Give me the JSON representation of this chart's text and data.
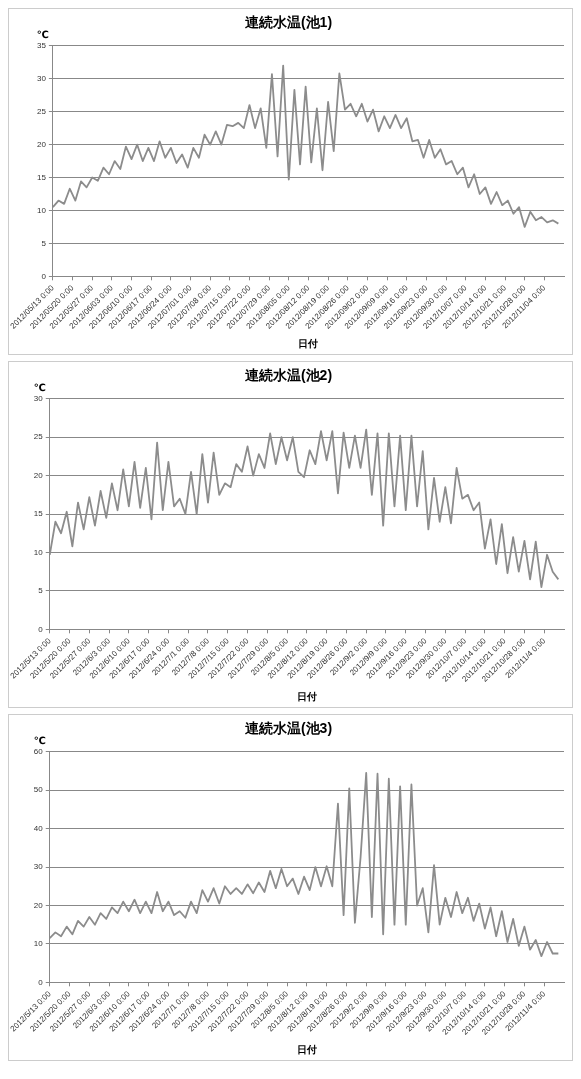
{
  "chart_data": [
    {
      "type": "line",
      "title": "連続水温(池1)",
      "ylabel": "℃",
      "xlabel": "日付",
      "color": "#8c8c8c",
      "grid": "y",
      "legend": false,
      "xlim": [
        "2012-05-13",
        "2012-11-11"
      ],
      "ylim": [
        0,
        35
      ],
      "yticks": [
        0,
        5,
        10,
        15,
        20,
        25,
        30,
        35
      ],
      "xticks": [
        {
          "value": "2012-05-13",
          "label": "2012/05/13 0:00"
        },
        {
          "value": "2012-05-20",
          "label": "2012/05/20 0:00"
        },
        {
          "value": "2012-05-27",
          "label": "2012/05/27 0:00"
        },
        {
          "value": "2012-06-03",
          "label": "2012/06/03 0:00"
        },
        {
          "value": "2012-06-10",
          "label": "2012/06/10 0:00"
        },
        {
          "value": "2012-06-17",
          "label": "2012/06/17 0:00"
        },
        {
          "value": "2012-06-24",
          "label": "2012/06/24 0:00"
        },
        {
          "value": "2012-07-01",
          "label": "2012/07/01 0:00"
        },
        {
          "value": "2012-07-08",
          "label": "2012/07/08 0:00"
        },
        {
          "value": "2012-07-15",
          "label": "2012/07/15 0:00"
        },
        {
          "value": "2012-07-22",
          "label": "2012/07/22 0:00"
        },
        {
          "value": "2012-07-29",
          "label": "2012/07/29 0:00"
        },
        {
          "value": "2012-08-05",
          "label": "2012/08/05 0:00"
        },
        {
          "value": "2012-08-12",
          "label": "2012/08/12 0:00"
        },
        {
          "value": "2012-08-19",
          "label": "2012/08/19 0:00"
        },
        {
          "value": "2012-08-26",
          "label": "2012/08/26 0:00"
        },
        {
          "value": "2012-09-02",
          "label": "2012/09/02 0:00"
        },
        {
          "value": "2012-09-09",
          "label": "2012/09/09 0:00"
        },
        {
          "value": "2012-09-16",
          "label": "2012/09/16 0:00"
        },
        {
          "value": "2012-09-23",
          "label": "2012/09/23 0:00"
        },
        {
          "value": "2012-09-30",
          "label": "2012/09/30 0:00"
        },
        {
          "value": "2012-10-07",
          "label": "2012/10/07 0:00"
        },
        {
          "value": "2012-10-14",
          "label": "2012/10/14 0:00"
        },
        {
          "value": "2012-10-21",
          "label": "2012/10/21 0:00"
        },
        {
          "value": "2012-10-28",
          "label": "2012/10/28 0:00"
        },
        {
          "value": "2012-11-04",
          "label": "2012/11/04 0:00"
        }
      ],
      "x": [
        "2012-05-13",
        "2012-05-15",
        "2012-05-17",
        "2012-05-19",
        "2012-05-21",
        "2012-05-23",
        "2012-05-25",
        "2012-05-27",
        "2012-05-29",
        "2012-05-31",
        "2012-06-02",
        "2012-06-04",
        "2012-06-06",
        "2012-06-08",
        "2012-06-10",
        "2012-06-12",
        "2012-06-14",
        "2012-06-16",
        "2012-06-18",
        "2012-06-20",
        "2012-06-22",
        "2012-06-24",
        "2012-06-26",
        "2012-06-28",
        "2012-06-30",
        "2012-07-02",
        "2012-07-04",
        "2012-07-06",
        "2012-07-08",
        "2012-07-10",
        "2012-07-12",
        "2012-07-14",
        "2012-07-16",
        "2012-07-18",
        "2012-07-20",
        "2012-07-22",
        "2012-07-24",
        "2012-07-26",
        "2012-07-28",
        "2012-07-30",
        "2012-08-01",
        "2012-08-03",
        "2012-08-05",
        "2012-08-07",
        "2012-08-09",
        "2012-08-11",
        "2012-08-13",
        "2012-08-15",
        "2012-08-17",
        "2012-08-19",
        "2012-08-21",
        "2012-08-23",
        "2012-08-25",
        "2012-08-27",
        "2012-08-29",
        "2012-08-31",
        "2012-09-02",
        "2012-09-04",
        "2012-09-06",
        "2012-09-08",
        "2012-09-10",
        "2012-09-12",
        "2012-09-14",
        "2012-09-16",
        "2012-09-18",
        "2012-09-20",
        "2012-09-22",
        "2012-09-24",
        "2012-09-26",
        "2012-09-28",
        "2012-09-30",
        "2012-10-02",
        "2012-10-04",
        "2012-10-06",
        "2012-10-08",
        "2012-10-10",
        "2012-10-12",
        "2012-10-14",
        "2012-10-16",
        "2012-10-18",
        "2012-10-20",
        "2012-10-22",
        "2012-10-24",
        "2012-10-26",
        "2012-10-28",
        "2012-10-30",
        "2012-11-01",
        "2012-11-03",
        "2012-11-05",
        "2012-11-07",
        "2012-11-09"
      ],
      "values": [
        10.5,
        11.5,
        11,
        13.3,
        11.5,
        14.4,
        13.5,
        15,
        14.5,
        16.5,
        15.5,
        17.5,
        16.3,
        19.7,
        17.8,
        20,
        17.5,
        19.5,
        17.5,
        20.5,
        18,
        19.5,
        17.2,
        18.5,
        16.5,
        19.5,
        18,
        21.5,
        20,
        22,
        20,
        23,
        22.8,
        23.3,
        22.5,
        26,
        22.5,
        25.5,
        19.5,
        30.7,
        18.2,
        32,
        14.7,
        28.3,
        17,
        28.8,
        17.3,
        25.5,
        16.1,
        26.5,
        19,
        30.8,
        25.3,
        26.2,
        24.3,
        26.2,
        23.5,
        25.3,
        22,
        24.3,
        22.5,
        24.5,
        22.5,
        24,
        20.5,
        20.7,
        18,
        20.7,
        18,
        19.3,
        17,
        17.5,
        15.5,
        16.5,
        13.5,
        15.5,
        12.5,
        13.5,
        11,
        12.8,
        10.8,
        11.5,
        9.5,
        10.5,
        7.5,
        9.8,
        8.5,
        9,
        8.2,
        8.5,
        8
      ]
    },
    {
      "type": "line",
      "title": "連続水温(池2)",
      "ylabel": "℃",
      "xlabel": "日付",
      "color": "#8c8c8c",
      "grid": "y",
      "legend": false,
      "xlim": [
        "2012-05-13",
        "2012-11-11"
      ],
      "ylim": [
        0,
        30
      ],
      "yticks": [
        0,
        5,
        10,
        15,
        20,
        25,
        30
      ],
      "xticks": [
        {
          "value": "2012-05-13",
          "label": "2012/5/13 0:00"
        },
        {
          "value": "2012-05-20",
          "label": "2012/5/20 0:00"
        },
        {
          "value": "2012-05-27",
          "label": "2012/5/27 0:00"
        },
        {
          "value": "2012-06-03",
          "label": "2012/6/3 0:00"
        },
        {
          "value": "2012-06-10",
          "label": "2012/6/10 0:00"
        },
        {
          "value": "2012-06-17",
          "label": "2012/6/17 0:00"
        },
        {
          "value": "2012-06-24",
          "label": "2012/6/24 0:00"
        },
        {
          "value": "2012-07-01",
          "label": "2012/7/1 0:00"
        },
        {
          "value": "2012-07-08",
          "label": "2012/7/8 0:00"
        },
        {
          "value": "2012-07-15",
          "label": "2012/7/15 0:00"
        },
        {
          "value": "2012-07-22",
          "label": "2012/7/22 0:00"
        },
        {
          "value": "2012-07-29",
          "label": "2012/7/29 0:00"
        },
        {
          "value": "2012-08-05",
          "label": "2012/8/5 0:00"
        },
        {
          "value": "2012-08-12",
          "label": "2012/8/12 0:00"
        },
        {
          "value": "2012-08-19",
          "label": "2012/8/19 0:00"
        },
        {
          "value": "2012-08-26",
          "label": "2012/8/26 0:00"
        },
        {
          "value": "2012-09-02",
          "label": "2012/9/2 0:00"
        },
        {
          "value": "2012-09-09",
          "label": "2012/9/9 0:00"
        },
        {
          "value": "2012-09-16",
          "label": "2012/9/16 0:00"
        },
        {
          "value": "2012-09-23",
          "label": "2012/9/23 0:00"
        },
        {
          "value": "2012-09-30",
          "label": "2012/9/30 0:00"
        },
        {
          "value": "2012-10-07",
          "label": "2012/10/7 0:00"
        },
        {
          "value": "2012-10-14",
          "label": "2012/10/14 0:00"
        },
        {
          "value": "2012-10-21",
          "label": "2012/10/21 0:00"
        },
        {
          "value": "2012-10-28",
          "label": "2012/10/28 0:00"
        },
        {
          "value": "2012-11-04",
          "label": "2012/11/4 0:00"
        }
      ],
      "x": [
        "2012-05-13",
        "2012-05-15",
        "2012-05-17",
        "2012-05-19",
        "2012-05-21",
        "2012-05-23",
        "2012-05-25",
        "2012-05-27",
        "2012-05-29",
        "2012-05-31",
        "2012-06-02",
        "2012-06-04",
        "2012-06-06",
        "2012-06-08",
        "2012-06-10",
        "2012-06-12",
        "2012-06-14",
        "2012-06-16",
        "2012-06-18",
        "2012-06-20",
        "2012-06-22",
        "2012-06-24",
        "2012-06-26",
        "2012-06-28",
        "2012-06-30",
        "2012-07-02",
        "2012-07-04",
        "2012-07-06",
        "2012-07-08",
        "2012-07-10",
        "2012-07-12",
        "2012-07-14",
        "2012-07-16",
        "2012-07-18",
        "2012-07-20",
        "2012-07-22",
        "2012-07-24",
        "2012-07-26",
        "2012-07-28",
        "2012-07-30",
        "2012-08-01",
        "2012-08-03",
        "2012-08-05",
        "2012-08-07",
        "2012-08-09",
        "2012-08-11",
        "2012-08-13",
        "2012-08-15",
        "2012-08-17",
        "2012-08-19",
        "2012-08-21",
        "2012-08-23",
        "2012-08-25",
        "2012-08-27",
        "2012-08-29",
        "2012-08-31",
        "2012-09-02",
        "2012-09-04",
        "2012-09-06",
        "2012-09-08",
        "2012-09-10",
        "2012-09-12",
        "2012-09-14",
        "2012-09-16",
        "2012-09-18",
        "2012-09-20",
        "2012-09-22",
        "2012-09-24",
        "2012-09-26",
        "2012-09-28",
        "2012-09-30",
        "2012-10-02",
        "2012-10-04",
        "2012-10-06",
        "2012-10-08",
        "2012-10-10",
        "2012-10-12",
        "2012-10-14",
        "2012-10-16",
        "2012-10-18",
        "2012-10-20",
        "2012-10-22",
        "2012-10-24",
        "2012-10-26",
        "2012-10-28",
        "2012-10-30",
        "2012-11-01",
        "2012-11-03",
        "2012-11-05",
        "2012-11-07",
        "2012-11-09"
      ],
      "values": [
        9.7,
        14,
        12.5,
        15.3,
        10.8,
        16.5,
        13,
        17.2,
        13.5,
        18,
        14.5,
        19,
        15.5,
        20.8,
        16,
        21.8,
        15.8,
        21,
        14.3,
        24.3,
        15.5,
        21.8,
        16,
        17,
        15,
        20.5,
        15,
        22.8,
        16.5,
        23,
        17.5,
        19,
        18.5,
        21.5,
        20.5,
        23.8,
        20,
        22.8,
        21,
        25.5,
        21.5,
        25,
        22,
        25,
        20.5,
        19.8,
        23.3,
        21.5,
        25.8,
        22,
        25.8,
        17.7,
        25.6,
        21,
        25.2,
        21,
        26,
        17.5,
        25.5,
        13.5,
        25.5,
        16,
        25.2,
        15.5,
        25.2,
        16,
        23.2,
        13,
        19.7,
        14,
        18.5,
        13.8,
        21,
        17,
        17.5,
        15.5,
        16.5,
        10.5,
        14.3,
        8.5,
        13.7,
        7.3,
        12,
        7.5,
        11.5,
        6.5,
        11.4,
        5.5,
        9.7,
        7.5,
        6.5
      ]
    },
    {
      "type": "line",
      "title": "連続水温(池3)",
      "ylabel": "℃",
      "xlabel": "日付",
      "color": "#8c8c8c",
      "grid": "y",
      "legend": false,
      "xlim": [
        "2012-05-13",
        "2012-11-11"
      ],
      "ylim": [
        0,
        60
      ],
      "yticks": [
        0,
        10,
        20,
        30,
        40,
        50,
        60
      ],
      "xticks": [
        {
          "value": "2012-05-13",
          "label": "2012/5/13 0:00"
        },
        {
          "value": "2012-05-20",
          "label": "2012/5/20 0:00"
        },
        {
          "value": "2012-05-27",
          "label": "2012/5/27 0:00"
        },
        {
          "value": "2012-06-03",
          "label": "2012/6/3 0:00"
        },
        {
          "value": "2012-06-10",
          "label": "2012/6/10 0:00"
        },
        {
          "value": "2012-06-17",
          "label": "2012/6/17 0:00"
        },
        {
          "value": "2012-06-24",
          "label": "2012/6/24 0:00"
        },
        {
          "value": "2012-07-01",
          "label": "2012/7/1 0:00"
        },
        {
          "value": "2012-07-08",
          "label": "2012/7/8 0:00"
        },
        {
          "value": "2012-07-15",
          "label": "2012/7/15 0:00"
        },
        {
          "value": "2012-07-22",
          "label": "2012/7/22 0:00"
        },
        {
          "value": "2012-07-29",
          "label": "2012/7/29 0:00"
        },
        {
          "value": "2012-08-05",
          "label": "2012/8/5 0:00"
        },
        {
          "value": "2012-08-12",
          "label": "2012/8/12 0:00"
        },
        {
          "value": "2012-08-19",
          "label": "2012/8/19 0:00"
        },
        {
          "value": "2012-08-26",
          "label": "2012/8/26 0:00"
        },
        {
          "value": "2012-09-02",
          "label": "2012/9/2 0:00"
        },
        {
          "value": "2012-09-09",
          "label": "2012/9/9 0:00"
        },
        {
          "value": "2012-09-16",
          "label": "2012/9/16 0:00"
        },
        {
          "value": "2012-09-23",
          "label": "2012/9/23 0:00"
        },
        {
          "value": "2012-09-30",
          "label": "2012/9/30 0:00"
        },
        {
          "value": "2012-10-07",
          "label": "2012/10/7 0:00"
        },
        {
          "value": "2012-10-14",
          "label": "2012/10/14 0:00"
        },
        {
          "value": "2012-10-21",
          "label": "2012/10/21 0:00"
        },
        {
          "value": "2012-10-28",
          "label": "2012/10/28 0:00"
        },
        {
          "value": "2012-11-04",
          "label": "2012/11/4 0:00"
        }
      ],
      "x": [
        "2012-05-13",
        "2012-05-15",
        "2012-05-17",
        "2012-05-19",
        "2012-05-21",
        "2012-05-23",
        "2012-05-25",
        "2012-05-27",
        "2012-05-29",
        "2012-05-31",
        "2012-06-02",
        "2012-06-04",
        "2012-06-06",
        "2012-06-08",
        "2012-06-10",
        "2012-06-12",
        "2012-06-14",
        "2012-06-16",
        "2012-06-18",
        "2012-06-20",
        "2012-06-22",
        "2012-06-24",
        "2012-06-26",
        "2012-06-28",
        "2012-06-30",
        "2012-07-02",
        "2012-07-04",
        "2012-07-06",
        "2012-07-08",
        "2012-07-10",
        "2012-07-12",
        "2012-07-14",
        "2012-07-16",
        "2012-07-18",
        "2012-07-20",
        "2012-07-22",
        "2012-07-24",
        "2012-07-26",
        "2012-07-28",
        "2012-07-30",
        "2012-08-01",
        "2012-08-03",
        "2012-08-05",
        "2012-08-07",
        "2012-08-09",
        "2012-08-11",
        "2012-08-13",
        "2012-08-15",
        "2012-08-17",
        "2012-08-19",
        "2012-08-21",
        "2012-08-23",
        "2012-08-25",
        "2012-08-27",
        "2012-08-29",
        "2012-08-31",
        "2012-09-02",
        "2012-09-04",
        "2012-09-06",
        "2012-09-08",
        "2012-09-10",
        "2012-09-12",
        "2012-09-14",
        "2012-09-16",
        "2012-09-18",
        "2012-09-20",
        "2012-09-22",
        "2012-09-24",
        "2012-09-26",
        "2012-09-28",
        "2012-09-30",
        "2012-10-02",
        "2012-10-04",
        "2012-10-06",
        "2012-10-08",
        "2012-10-10",
        "2012-10-12",
        "2012-10-14",
        "2012-10-16",
        "2012-10-18",
        "2012-10-20",
        "2012-10-22",
        "2012-10-24",
        "2012-10-26",
        "2012-10-28",
        "2012-10-30",
        "2012-11-01",
        "2012-11-03",
        "2012-11-05",
        "2012-11-07",
        "2012-11-09"
      ],
      "values": [
        11.5,
        13,
        12,
        14.5,
        12.5,
        16,
        14.5,
        17,
        15,
        18,
        16.5,
        19.5,
        18,
        21,
        18.5,
        21.5,
        18,
        21,
        18,
        23.5,
        18.5,
        21,
        17.5,
        18.5,
        16.8,
        21,
        18,
        24,
        21,
        24.5,
        20.5,
        25,
        23,
        24.5,
        23,
        25.5,
        23.2,
        26,
        23.5,
        29,
        24.5,
        29.5,
        25,
        27,
        23,
        27.5,
        24,
        30,
        25,
        30.2,
        25,
        46.5,
        17.5,
        50.5,
        15.5,
        32.5,
        54.5,
        17,
        54.3,
        12.5,
        53,
        15,
        51,
        15,
        51.5,
        20,
        24.5,
        13,
        30.5,
        15,
        22,
        17,
        23.5,
        18,
        22,
        16,
        20.5,
        14,
        19.5,
        12,
        18.5,
        10.5,
        16.5,
        9.5,
        14.5,
        8.5,
        11,
        6.8,
        10.5,
        7.5,
        7.5
      ]
    }
  ]
}
